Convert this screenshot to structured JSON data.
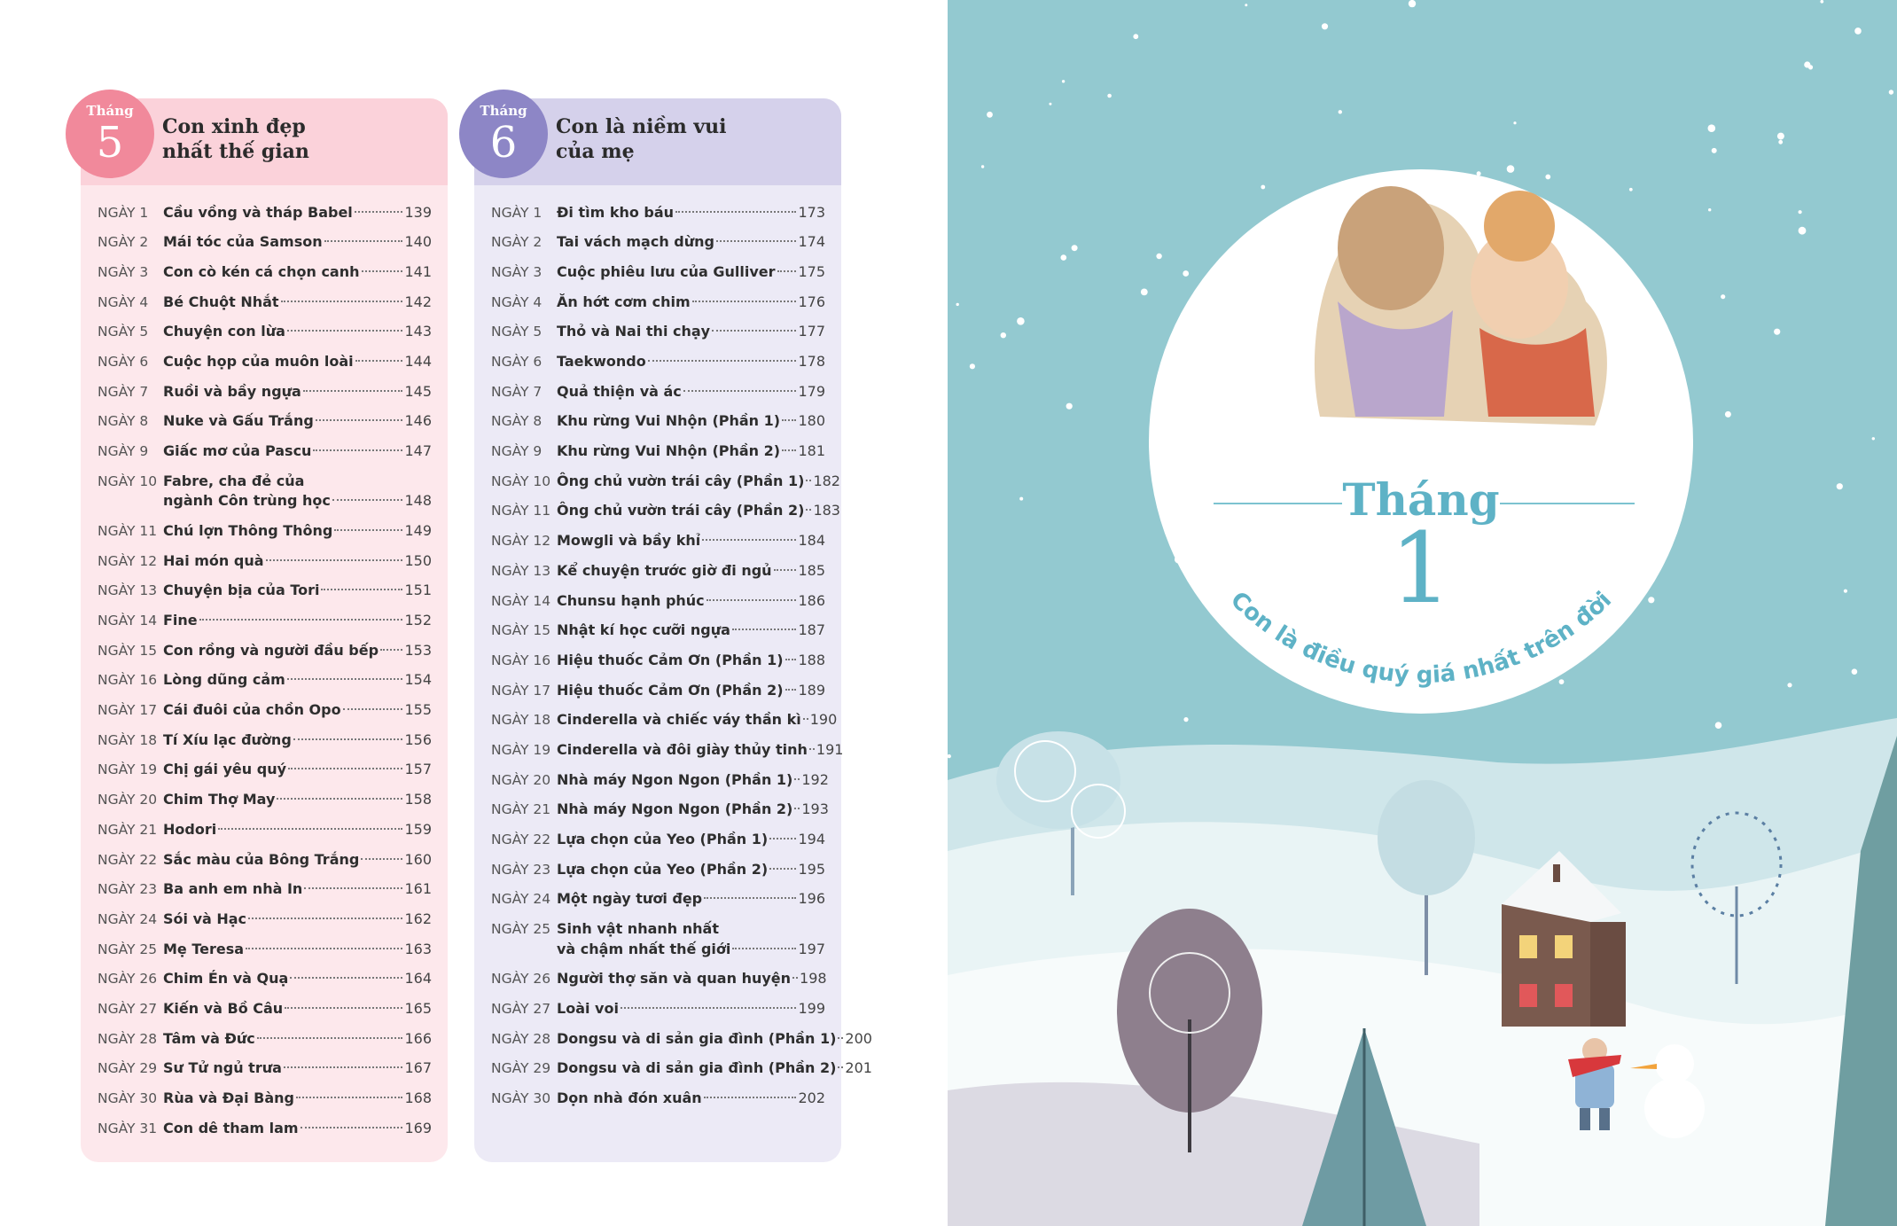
{
  "left_page": {
    "months": [
      {
        "label": "Tháng",
        "number": 5,
        "title": [
          "Con xinh đẹp",
          "nhất thế gian"
        ],
        "entries": [
          {
            "day": "NGÀY 1",
            "title": [
              "Cầu vồng và tháp Babel"
            ],
            "page": 139
          },
          {
            "day": "NGÀY 2",
            "title": [
              "Mái tóc của Samson"
            ],
            "page": 140
          },
          {
            "day": "NGÀY 3",
            "title": [
              "Con cò kén cá chọn canh"
            ],
            "page": 141
          },
          {
            "day": "NGÀY 4",
            "title": [
              "Bé Chuột Nhắt"
            ],
            "page": 142
          },
          {
            "day": "NGÀY 5",
            "title": [
              "Chuyện con lừa"
            ],
            "page": 143
          },
          {
            "day": "NGÀY 6",
            "title": [
              "Cuộc họp của muôn loài"
            ],
            "page": 144
          },
          {
            "day": "NGÀY 7",
            "title": [
              "Ruồi và bầy ngựa"
            ],
            "page": 145
          },
          {
            "day": "NGÀY 8",
            "title": [
              "Nuke và Gấu Trắng"
            ],
            "page": 146
          },
          {
            "day": "NGÀY 9",
            "title": [
              "Giấc mơ của Pascu"
            ],
            "page": 147
          },
          {
            "day": "NGÀY 10",
            "title": [
              "Fabre, cha đẻ của",
              "ngành Côn trùng học"
            ],
            "page": 148
          },
          {
            "day": "NGÀY 11",
            "title": [
              "Chú lợn Thông Thông"
            ],
            "page": 149
          },
          {
            "day": "NGÀY 12",
            "title": [
              "Hai món quà"
            ],
            "page": 150
          },
          {
            "day": "NGÀY 13",
            "title": [
              "Chuyện bịa của Tori"
            ],
            "page": 151
          },
          {
            "day": "NGÀY 14",
            "title": [
              "Fine"
            ],
            "page": 152
          },
          {
            "day": "NGÀY 15",
            "title": [
              "Con rồng và người đầu bếp"
            ],
            "page": 153
          },
          {
            "day": "NGÀY 16",
            "title": [
              "Lòng dũng cảm"
            ],
            "page": 154
          },
          {
            "day": "NGÀY 17",
            "title": [
              "Cái đuôi của chồn Opo"
            ],
            "page": 155
          },
          {
            "day": "NGÀY 18",
            "title": [
              "Tí Xíu lạc đường"
            ],
            "page": 156
          },
          {
            "day": "NGÀY 19",
            "title": [
              "Chị gái yêu quý"
            ],
            "page": 157
          },
          {
            "day": "NGÀY 20",
            "title": [
              "Chim Thợ May"
            ],
            "page": 158
          },
          {
            "day": "NGÀY 21",
            "title": [
              "Hodori"
            ],
            "page": 159
          },
          {
            "day": "NGÀY 22",
            "title": [
              "Sắc màu của Bông Trắng"
            ],
            "page": 160
          },
          {
            "day": "NGÀY 23",
            "title": [
              "Ba anh em nhà In"
            ],
            "page": 161
          },
          {
            "day": "NGÀY 24",
            "title": [
              "Sói và Hạc"
            ],
            "page": 162
          },
          {
            "day": "NGÀY 25",
            "title": [
              "Mẹ Teresa"
            ],
            "page": 163
          },
          {
            "day": "NGÀY 26",
            "title": [
              "Chim Én và Quạ"
            ],
            "page": 164
          },
          {
            "day": "NGÀY 27",
            "title": [
              "Kiến và Bồ Câu"
            ],
            "page": 165
          },
          {
            "day": "NGÀY 28",
            "title": [
              "Tâm và Đức"
            ],
            "page": 166
          },
          {
            "day": "NGÀY 29",
            "title": [
              "Sư Tử ngủ trưa"
            ],
            "page": 167
          },
          {
            "day": "NGÀY 30",
            "title": [
              "Rùa và Đại Bàng"
            ],
            "page": 168
          },
          {
            "day": "NGÀY 31",
            "title": [
              "Con dê tham lam"
            ],
            "page": 169
          }
        ]
      },
      {
        "label": "Tháng",
        "number": 6,
        "title": [
          "Con là niềm vui",
          "của mẹ"
        ],
        "entries": [
          {
            "day": "NGÀY 1",
            "title": [
              "Đi tìm kho báu"
            ],
            "page": 173
          },
          {
            "day": "NGÀY 2",
            "title": [
              "Tai vách mạch dừng"
            ],
            "page": 174
          },
          {
            "day": "NGÀY 3",
            "title": [
              "Cuộc phiêu lưu của Gulliver"
            ],
            "page": 175
          },
          {
            "day": "NGÀY 4",
            "title": [
              "Ăn hớt cơm chim"
            ],
            "page": 176
          },
          {
            "day": "NGÀY 5",
            "title": [
              "Thỏ và Nai thi chạy"
            ],
            "page": 177
          },
          {
            "day": "NGÀY 6",
            "title": [
              "Taekwondo"
            ],
            "page": 178
          },
          {
            "day": "NGÀY 7",
            "title": [
              "Quả thiện và ác"
            ],
            "page": 179
          },
          {
            "day": "NGÀY 8",
            "title": [
              "Khu rừng Vui Nhộn (Phần 1)"
            ],
            "page": 180
          },
          {
            "day": "NGÀY 9",
            "title": [
              "Khu rừng Vui Nhộn (Phần 2)"
            ],
            "page": 181
          },
          {
            "day": "NGÀY 10",
            "title": [
              "Ông chủ vườn trái cây (Phần 1)"
            ],
            "page": 182
          },
          {
            "day": "NGÀY 11",
            "title": [
              "Ông chủ vườn trái cây (Phần 2)"
            ],
            "page": 183
          },
          {
            "day": "NGÀY 12",
            "title": [
              "Mowgli và bầy khỉ"
            ],
            "page": 184
          },
          {
            "day": "NGÀY 13",
            "title": [
              "Kể chuyện trước giờ đi ngủ"
            ],
            "page": 185
          },
          {
            "day": "NGÀY 14",
            "title": [
              "Chunsu hạnh phúc"
            ],
            "page": 186
          },
          {
            "day": "NGÀY 15",
            "title": [
              "Nhật kí học cưỡi ngựa"
            ],
            "page": 187
          },
          {
            "day": "NGÀY 16",
            "title": [
              "Hiệu thuốc Cảm Ơn (Phần 1)"
            ],
            "page": 188
          },
          {
            "day": "NGÀY 17",
            "title": [
              "Hiệu thuốc Cảm Ơn (Phần 2)"
            ],
            "page": 189
          },
          {
            "day": "NGÀY 18",
            "title": [
              "Cinderella và chiếc váy thần kì"
            ],
            "page": 190
          },
          {
            "day": "NGÀY 19",
            "title": [
              "Cinderella và đôi giày thủy tinh"
            ],
            "page": 191
          },
          {
            "day": "NGÀY 20",
            "title": [
              "Nhà máy Ngon Ngon (Phần 1)"
            ],
            "page": 192
          },
          {
            "day": "NGÀY 21",
            "title": [
              "Nhà máy Ngon Ngon (Phần 2)"
            ],
            "page": 193
          },
          {
            "day": "NGÀY 22",
            "title": [
              "Lựa chọn của Yeo (Phần 1)"
            ],
            "page": 194
          },
          {
            "day": "NGÀY 23",
            "title": [
              "Lựa chọn của Yeo (Phần 2)"
            ],
            "page": 195
          },
          {
            "day": "NGÀY 24",
            "title": [
              "Một ngày tươi đẹp"
            ],
            "page": 196
          },
          {
            "day": "NGÀY 25",
            "title": [
              "Sinh vật nhanh nhất",
              "và chậm nhất thế giới"
            ],
            "page": 197
          },
          {
            "day": "NGÀY 26",
            "title": [
              "Người thợ săn và quan huyện"
            ],
            "page": 198
          },
          {
            "day": "NGÀY 27",
            "title": [
              "Loài voi"
            ],
            "page": 199
          },
          {
            "day": "NGÀY 28",
            "title": [
              "Dongsu và di sản gia đình (Phần 1)"
            ],
            "page": 200
          },
          {
            "day": "NGÀY 29",
            "title": [
              "Dongsu và di sản gia đình (Phần 2)"
            ],
            "page": 201
          },
          {
            "day": "NGÀY 30",
            "title": [
              "Dọn nhà đón xuân"
            ],
            "page": 202
          }
        ]
      }
    ]
  },
  "right_page": {
    "label": "Tháng",
    "number": 1,
    "subtitle": "Con là điều quý giá nhất trên đời"
  }
}
